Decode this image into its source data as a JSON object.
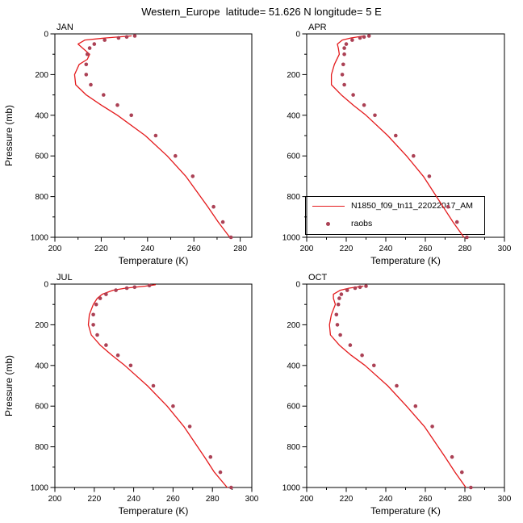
{
  "title": "Western_Europe  latitude= 51.626 N longitude= 5 E",
  "legend": {
    "line_label": "N1850_f09_tn11_22022017_AM",
    "dot_label": "raobs",
    "line_color": "#e41a1c",
    "dot_color": "#ab4155"
  },
  "chart_data": {
    "type": "line",
    "title": "Western_Europe  latitude= 51.626 N longitude= 5 E",
    "xlabel": "Temperature (K)",
    "ylabel": "Pressure (mb)",
    "y_inverted": true,
    "grid": false,
    "legend_position": "overlapping bottom of top-right panel",
    "series_names": [
      "N1850_f09_tn11_22022017_AM",
      "raobs"
    ],
    "panels": [
      {
        "name": "JAN",
        "xlim": [
          200,
          285
        ],
        "xticks": [
          200,
          220,
          240,
          260,
          280
        ],
        "ylim": [
          0,
          1000
        ],
        "yticks": [
          0,
          200,
          400,
          600,
          800,
          1000
        ],
        "series": [
          {
            "name": "N1850_f09_tn11_22022017_AM",
            "style": "line",
            "points": [
              [
                10,
                233
              ],
              [
                20,
                222
              ],
              [
                30,
                213
              ],
              [
                50,
                210
              ],
              [
                70,
                212
              ],
              [
                100,
                215
              ],
              [
                125,
                214
              ],
              [
                150,
                210.5
              ],
              [
                200,
                208.5
              ],
              [
                250,
                209
              ],
              [
                300,
                213.5
              ],
              [
                350,
                220
              ],
              [
                400,
                227
              ],
              [
                500,
                239
              ],
              [
                600,
                248.5
              ],
              [
                700,
                256.5
              ],
              [
                850,
                266
              ],
              [
                925,
                270.5
              ],
              [
                1000,
                275.5
              ]
            ]
          },
          {
            "name": "raobs",
            "style": "dots",
            "points": [
              [
                10,
                234.5
              ],
              [
                15,
                231
              ],
              [
                20,
                227.5
              ],
              [
                30,
                221.5
              ],
              [
                50,
                217
              ],
              [
                70,
                215
              ],
              [
                100,
                214
              ],
              [
                150,
                213.5
              ],
              [
                200,
                213.5
              ],
              [
                250,
                215.5
              ],
              [
                300,
                221
              ],
              [
                350,
                227
              ],
              [
                400,
                233
              ],
              [
                500,
                243.5
              ],
              [
                600,
                252
              ],
              [
                700,
                259.5
              ],
              [
                850,
                268.5
              ],
              [
                925,
                272.5
              ],
              [
                1000,
                276
              ]
            ]
          }
        ]
      },
      {
        "name": "APR",
        "xlim": [
          200,
          300
        ],
        "xticks": [
          200,
          220,
          240,
          260,
          280,
          300
        ],
        "ylim": [
          0,
          1000
        ],
        "yticks": [
          0,
          200,
          400,
          600,
          800,
          1000
        ],
        "series": [
          {
            "name": "N1850_f09_tn11_22022017_AM",
            "style": "line",
            "points": [
              [
                10,
                229
              ],
              [
                20,
                222.5
              ],
              [
                30,
                218
              ],
              [
                50,
                215.5
              ],
              [
                70,
                216
              ],
              [
                100,
                216.5
              ],
              [
                150,
                214
              ],
              [
                200,
                212.5
              ],
              [
                250,
                212.5
              ],
              [
                300,
                217.5
              ],
              [
                350,
                223.5
              ],
              [
                400,
                230
              ],
              [
                500,
                241
              ],
              [
                600,
                250.5
              ],
              [
                700,
                259
              ],
              [
                850,
                269
              ],
              [
                925,
                274
              ],
              [
                1000,
                279.5
              ]
            ]
          },
          {
            "name": "raobs",
            "style": "dots",
            "points": [
              [
                10,
                231.5
              ],
              [
                15,
                229
              ],
              [
                20,
                227
              ],
              [
                30,
                223
              ],
              [
                50,
                220
              ],
              [
                70,
                219
              ],
              [
                100,
                219
              ],
              [
                150,
                218.5
              ],
              [
                200,
                218
              ],
              [
                250,
                219
              ],
              [
                300,
                223.5
              ],
              [
                350,
                229
              ],
              [
                400,
                234.5
              ],
              [
                500,
                245
              ],
              [
                600,
                254
              ],
              [
                700,
                262
              ],
              [
                850,
                271.5
              ],
              [
                925,
                276
              ],
              [
                1000,
                281
              ]
            ]
          }
        ]
      },
      {
        "name": "JUL",
        "xlim": [
          200,
          300
        ],
        "xticks": [
          200,
          220,
          240,
          260,
          280,
          300
        ],
        "ylim": [
          0,
          1000
        ],
        "yticks": [
          0,
          200,
          400,
          600,
          800,
          1000
        ],
        "series": [
          {
            "name": "N1850_f09_tn11_22022017_AM",
            "style": "line",
            "points": [
              [
                3,
                251
              ],
              [
                10,
                246
              ],
              [
                20,
                236
              ],
              [
                30,
                229.5
              ],
              [
                50,
                224
              ],
              [
                70,
                221.5
              ],
              [
                100,
                219.5
              ],
              [
                150,
                217.5
              ],
              [
                200,
                217
              ],
              [
                250,
                218.5
              ],
              [
                300,
                223
              ],
              [
                350,
                229
              ],
              [
                400,
                235.5
              ],
              [
                500,
                247
              ],
              [
                600,
                257
              ],
              [
                700,
                265.5
              ],
              [
                850,
                276
              ],
              [
                925,
                281
              ],
              [
                1000,
                287.5
              ]
            ]
          },
          {
            "name": "raobs",
            "style": "dots",
            "points": [
              [
                7,
                248
              ],
              [
                15,
                240.5
              ],
              [
                20,
                236.5
              ],
              [
                30,
                231
              ],
              [
                50,
                226
              ],
              [
                70,
                223
              ],
              [
                100,
                221
              ],
              [
                150,
                219.5
              ],
              [
                200,
                219.5
              ],
              [
                250,
                221.5
              ],
              [
                300,
                226
              ],
              [
                350,
                232
              ],
              [
                400,
                238.5
              ],
              [
                500,
                250
              ],
              [
                600,
                260
              ],
              [
                700,
                268.5
              ],
              [
                850,
                279
              ],
              [
                925,
                284
              ],
              [
                1000,
                289.5
              ]
            ]
          }
        ]
      },
      {
        "name": "OCT",
        "xlim": [
          200,
          300
        ],
        "xticks": [
          200,
          220,
          240,
          260,
          280,
          300
        ],
        "ylim": [
          0,
          1000
        ],
        "yticks": [
          0,
          200,
          400,
          600,
          800,
          1000
        ],
        "series": [
          {
            "name": "N1850_f09_tn11_22022017_AM",
            "style": "line",
            "points": [
              [
                10,
                228.5
              ],
              [
                20,
                221.5
              ],
              [
                30,
                217
              ],
              [
                50,
                213.5
              ],
              [
                70,
                213.5
              ],
              [
                100,
                214.5
              ],
              [
                150,
                212.5
              ],
              [
                200,
                211.5
              ],
              [
                250,
                212
              ],
              [
                300,
                216.5
              ],
              [
                350,
                222.5
              ],
              [
                400,
                229.5
              ],
              [
                500,
                241
              ],
              [
                600,
                250.5
              ],
              [
                700,
                259.5
              ],
              [
                850,
                270
              ],
              [
                925,
                275
              ],
              [
                1000,
                280.5
              ]
            ]
          },
          {
            "name": "raobs",
            "style": "dots",
            "points": [
              [
                10,
                230
              ],
              [
                15,
                227
              ],
              [
                20,
                224.5
              ],
              [
                30,
                220.5
              ],
              [
                50,
                217.5
              ],
              [
                70,
                216.5
              ],
              [
                100,
                216
              ],
              [
                150,
                215
              ],
              [
                200,
                215.5
              ],
              [
                250,
                217
              ],
              [
                300,
                222
              ],
              [
                350,
                228
              ],
              [
                400,
                234
              ],
              [
                500,
                245.5
              ],
              [
                600,
                255
              ],
              [
                700,
                263.5
              ],
              [
                850,
                273.5
              ],
              [
                925,
                278.5
              ],
              [
                1000,
                283
              ]
            ]
          }
        ]
      }
    ]
  }
}
